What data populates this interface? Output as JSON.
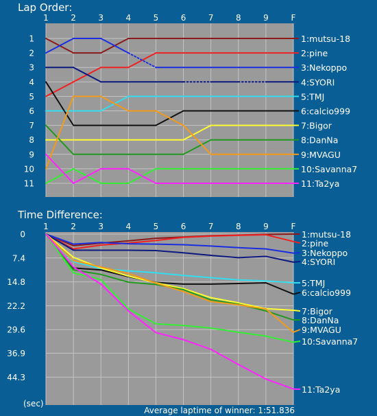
{
  "colors": {
    "background": "#0a5e96",
    "plot_bg": "#9a9a9a",
    "grid": "#c4c4c4",
    "text": "#ffffff"
  },
  "footer": "Average laptime of winner: 1:51.836",
  "chart_data": [
    {
      "type": "line",
      "title": "Lap Order:",
      "x": [
        "1",
        "2",
        "3",
        "4",
        "5",
        "6",
        "7",
        "8",
        "9",
        "F"
      ],
      "y_ticks": [
        "1",
        "2",
        "3",
        "4",
        "5",
        "6",
        "7",
        "8",
        "9",
        "10",
        "11"
      ],
      "ylim": [
        1,
        11
      ],
      "y_inverted": true,
      "grid": true,
      "series": [
        {
          "name": "1:mutsu-18",
          "color": "#8b1a1a",
          "values": [
            1,
            2,
            2,
            1,
            1,
            1,
            1,
            1,
            1,
            1
          ]
        },
        {
          "name": "2:pine",
          "color": "#ee2222",
          "values": [
            5,
            4,
            3,
            3,
            2,
            2,
            2,
            2,
            2,
            2
          ]
        },
        {
          "name": "3:Nekoppo",
          "color": "#1a2ee0",
          "values": [
            2,
            1,
            1,
            2,
            3,
            3,
            3,
            3,
            3,
            3
          ],
          "dotted_segments": [
            3
          ]
        },
        {
          "name": "4:SYORI",
          "color": "#0c1a80",
          "values": [
            3,
            3,
            4,
            4,
            4,
            4,
            4,
            4,
            4,
            4
          ],
          "dotted_segments": [
            5,
            7
          ]
        },
        {
          "name": "5:TMJ",
          "color": "#33ddee",
          "values": [
            6,
            6,
            6,
            5,
            5,
            5,
            5,
            5,
            5,
            5
          ]
        },
        {
          "name": "6:calcio999",
          "color": "#111111",
          "values": [
            4,
            7,
            7,
            7,
            7,
            6,
            6,
            6,
            6,
            6
          ]
        },
        {
          "name": "7:Bigor",
          "color": "#ffff33",
          "values": [
            8,
            8,
            8,
            8,
            8,
            8,
            7,
            7,
            7,
            7
          ]
        },
        {
          "name": "8:DanNa",
          "color": "#22991e",
          "values": [
            7,
            9,
            9,
            9,
            9,
            9,
            8,
            8,
            8,
            8
          ]
        },
        {
          "name": "9:MVAGU",
          "color": "#f29a1a",
          "values": [
            10,
            5,
            5,
            6,
            6,
            7,
            9,
            9,
            9,
            9
          ]
        },
        {
          "name": "10:Savanna7",
          "color": "#33ee33",
          "values": [
            11,
            10,
            11,
            11,
            10,
            10,
            10,
            10,
            10,
            10
          ]
        },
        {
          "name": "11:Ta2ya",
          "color": "#ff22ff",
          "values": [
            9,
            11,
            10,
            10,
            11,
            11,
            11,
            11,
            11,
            11
          ]
        }
      ]
    },
    {
      "type": "line",
      "title": "Time Difference:",
      "x": [
        "1",
        "2",
        "3",
        "4",
        "5",
        "6",
        "7",
        "8",
        "9",
        "F"
      ],
      "y_ticks": [
        "0",
        "7.4",
        "14.8",
        "22.2",
        "29.6",
        "36.9",
        "44.3"
      ],
      "y_tick_values": [
        0,
        7.4,
        14.8,
        22.2,
        29.6,
        36.9,
        44.3
      ],
      "ylim": [
        0,
        48.5
      ],
      "y_inverted": true,
      "ylabel": "(sec)",
      "grid": true,
      "series": [
        {
          "name": "1:mutsu-18",
          "color": "#8b1a1a",
          "values": [
            0,
            3.6,
            2.8,
            2.1,
            1.3,
            0.9,
            0.5,
            0.3,
            0.1,
            0
          ]
        },
        {
          "name": "2:pine",
          "color": "#ee2222",
          "values": [
            0,
            4.6,
            3.4,
            2.8,
            2.0,
            1.0,
            0.6,
            0.4,
            0.2,
            2.3
          ]
        },
        {
          "name": "3:Nekoppo",
          "color": "#1a2ee0",
          "values": [
            0,
            3.1,
            2.6,
            3.0,
            3.1,
            3.3,
            3.7,
            4.2,
            4.6,
            5.9
          ]
        },
        {
          "name": "4:SYORI",
          "color": "#0c1a80",
          "values": [
            0,
            5.0,
            5.0,
            5.0,
            5.1,
            5.8,
            6.6,
            7.3,
            6.9,
            8.7
          ]
        },
        {
          "name": "5:TMJ",
          "color": "#33ddee",
          "values": [
            0,
            8.5,
            10.7,
            11.4,
            12.0,
            12.8,
            13.5,
            14.2,
            14.5,
            15.1
          ]
        },
        {
          "name": "6:calcio999",
          "color": "#111111",
          "values": [
            0,
            10.5,
            11.1,
            13.2,
            15.0,
            15.5,
            15.5,
            15.3,
            15.1,
            18.6
          ]
        },
        {
          "name": "7:Bigor",
          "color": "#ffff33",
          "values": [
            0,
            7.2,
            10.5,
            13.0,
            15.1,
            16.9,
            19.7,
            21.3,
            23.1,
            23.6
          ]
        },
        {
          "name": "8:DanNa",
          "color": "#22991e",
          "values": [
            0,
            11.1,
            12.5,
            14.9,
            15.6,
            17.2,
            20.4,
            21.7,
            23.8,
            26.6
          ]
        },
        {
          "name": "9:MVAGU",
          "color": "#f29a1a",
          "values": [
            0,
            8.2,
            10.2,
            12.2,
            15.2,
            17.8,
            20.9,
            21.9,
            23.2,
            30.4
          ]
        },
        {
          "name": "10:Savanna7",
          "color": "#33ee33",
          "values": [
            0,
            12.0,
            14.1,
            23.2,
            27.8,
            28.3,
            29.1,
            30.4,
            31.6,
            33.5
          ]
        },
        {
          "name": "11:Ta2ya",
          "color": "#ff22ff",
          "values": [
            0,
            10.2,
            15.5,
            23.8,
            30.5,
            32.7,
            35.7,
            40.4,
            44.9,
            48.0
          ]
        }
      ]
    }
  ]
}
